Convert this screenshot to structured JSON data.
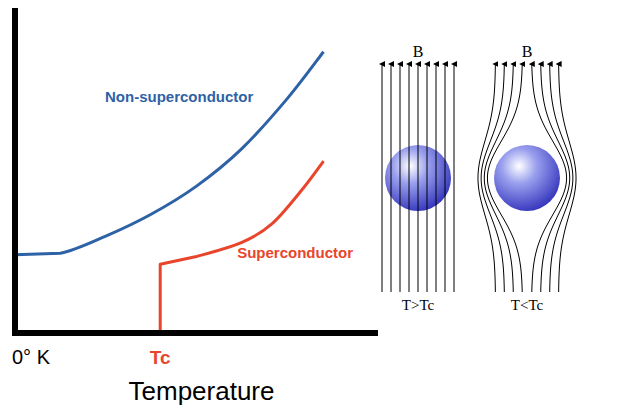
{
  "chart_data": {
    "type": "line",
    "x_label": "Temperature",
    "xlim": [
      0,
      12
    ],
    "ylim": [
      0,
      10.4
    ],
    "xticks": [
      {
        "value": 0,
        "label": "0° K"
      },
      {
        "value": 4.8,
        "label": "Tc"
      }
    ],
    "tick_labels": "x",
    "grid": false,
    "series": [
      {
        "name": "Non-superconductor",
        "color": "#2e62a6",
        "x": [
          0,
          1.5,
          3,
          4.5,
          6,
          7.5,
          9,
          10.2
        ],
        "values": [
          2.5,
          2.55,
          3.1,
          3.8,
          4.7,
          5.9,
          7.5,
          9
        ]
      },
      {
        "name": "Superconductor",
        "color": "#e8452c",
        "x": [
          4.8,
          4.8,
          6,
          7.5,
          8.5,
          9.5,
          10.2
        ],
        "values": [
          0,
          2.2,
          2.45,
          2.9,
          3.5,
          4.6,
          5.5
        ]
      }
    ]
  },
  "diagram": {
    "panels": [
      {
        "field_label": "B",
        "caption": "T>Tc"
      },
      {
        "field_label": "B",
        "caption": "T<Tc"
      }
    ]
  }
}
